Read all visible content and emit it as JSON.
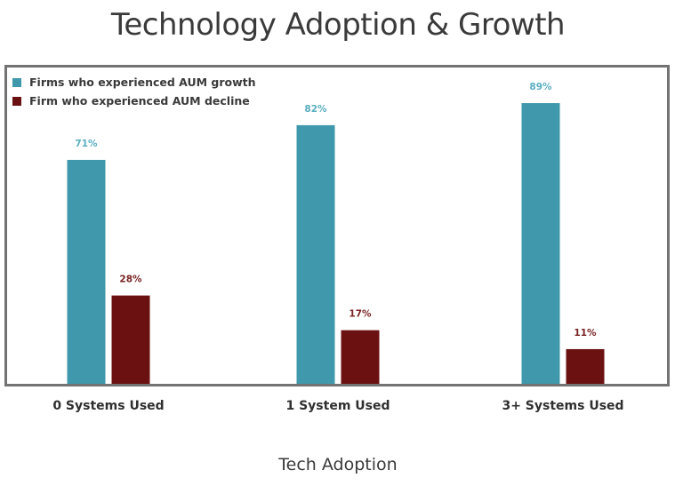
{
  "chart_data": {
    "type": "bar",
    "title": "Technology Adoption & Growth",
    "xlabel": "Tech Adoption",
    "ylabel": "",
    "ylim": [
      0,
      100
    ],
    "grid": false,
    "legend_position": "top-left",
    "categories": [
      "0 Systems Used",
      "1 System Used",
      "3+ Systems Used"
    ],
    "series": [
      {
        "name": "Firms who experienced AUM growth",
        "color": "#3f98ab",
        "label_color": "#5aaec0",
        "values": [
          71,
          82,
          89
        ],
        "labels": [
          "71%",
          "82%",
          "89%"
        ]
      },
      {
        "name": "Firm who experienced AUM decline",
        "color": "#6b1112",
        "label_color": "#7a2222",
        "values": [
          28,
          17,
          11
        ],
        "labels": [
          "28%",
          "17%",
          "11%"
        ]
      }
    ]
  }
}
